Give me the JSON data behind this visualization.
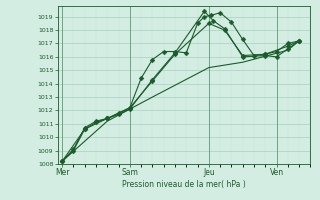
{
  "title": "",
  "xlabel": "Pression niveau de la mer( hPa )",
  "ylabel": "",
  "background_color": "#d4ede2",
  "grid_color_major": "#a8cfc0",
  "grid_color_minor": "#c0e0d0",
  "line_color": "#1a5c2a",
  "ylim": [
    1008,
    1019.8
  ],
  "yticks": [
    1008,
    1009,
    1010,
    1011,
    1012,
    1013,
    1014,
    1015,
    1016,
    1017,
    1018,
    1019
  ],
  "day_labels": [
    "Mer",
    "Sam",
    "Jeu",
    "Ven"
  ],
  "day_positions": [
    0.0,
    3.0,
    6.5,
    9.5
  ],
  "xlim": [
    -0.2,
    11.0
  ],
  "series": [
    {
      "x": [
        0.0,
        0.5,
        1.0,
        1.5,
        2.0,
        2.5,
        3.0,
        3.5,
        4.0,
        4.5,
        5.0,
        5.5,
        6.0,
        6.3,
        6.6,
        7.0,
        7.5,
        8.0,
        8.5,
        9.0,
        9.5,
        10.0,
        10.5
      ],
      "y": [
        1008.2,
        1009.1,
        1010.7,
        1011.2,
        1011.4,
        1011.8,
        1012.2,
        1014.4,
        1015.8,
        1016.4,
        1016.4,
        1016.3,
        1018.5,
        1019.0,
        1019.1,
        1019.3,
        1018.6,
        1017.3,
        1016.1,
        1016.2,
        1016.4,
        1017.0,
        1017.2
      ],
      "marker": "D",
      "markersize": 2.5
    },
    {
      "x": [
        0.0,
        0.5,
        1.0,
        1.5,
        2.0,
        2.5,
        3.0,
        4.0,
        5.0,
        6.3,
        6.7,
        7.2,
        8.0,
        9.0,
        9.5,
        10.0,
        10.5
      ],
      "y": [
        1008.2,
        1009.0,
        1010.6,
        1011.1,
        1011.4,
        1011.7,
        1012.1,
        1014.3,
        1016.3,
        1019.4,
        1018.7,
        1018.1,
        1016.0,
        1016.1,
        1016.0,
        1016.6,
        1017.2
      ],
      "marker": "D",
      "markersize": 2.5
    },
    {
      "x": [
        0.0,
        1.0,
        2.0,
        3.0,
        4.0,
        5.0,
        6.5,
        7.2,
        8.0,
        9.0,
        10.0,
        10.5
      ],
      "y": [
        1008.2,
        1010.6,
        1011.4,
        1012.2,
        1014.2,
        1016.2,
        1018.5,
        1018.0,
        1016.1,
        1016.2,
        1016.8,
        1017.2
      ],
      "marker": "D",
      "markersize": 2.5
    },
    {
      "x": [
        0.0,
        2.0,
        4.0,
        6.5,
        8.0,
        10.0,
        10.5
      ],
      "y": [
        1008.2,
        1011.2,
        1013.0,
        1015.2,
        1015.6,
        1016.5,
        1017.2
      ],
      "marker": null,
      "markersize": 0
    }
  ]
}
